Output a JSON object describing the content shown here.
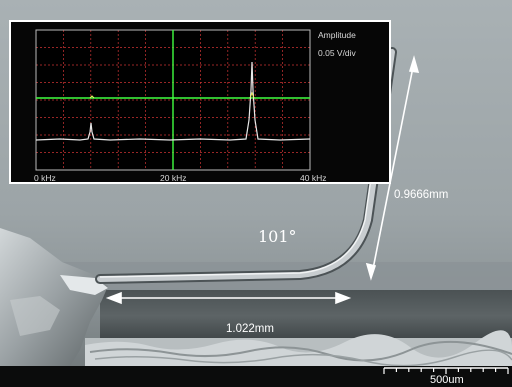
{
  "spectrum_inset": {
    "amplitude_label": "Amplitude",
    "scale_label": "0.05 V/div",
    "x_ticks": [
      "0 kHz",
      "20 kHz",
      "40 kHz"
    ],
    "colors": {
      "grid": "#cc3333",
      "background": "#050505",
      "marker": "#40ff40",
      "trace": "#e8e8e8"
    }
  },
  "annotations": {
    "angle": "101°",
    "arm_length": "0.9666mm",
    "base_length": "1.022mm",
    "scale_bar": "500um"
  }
}
